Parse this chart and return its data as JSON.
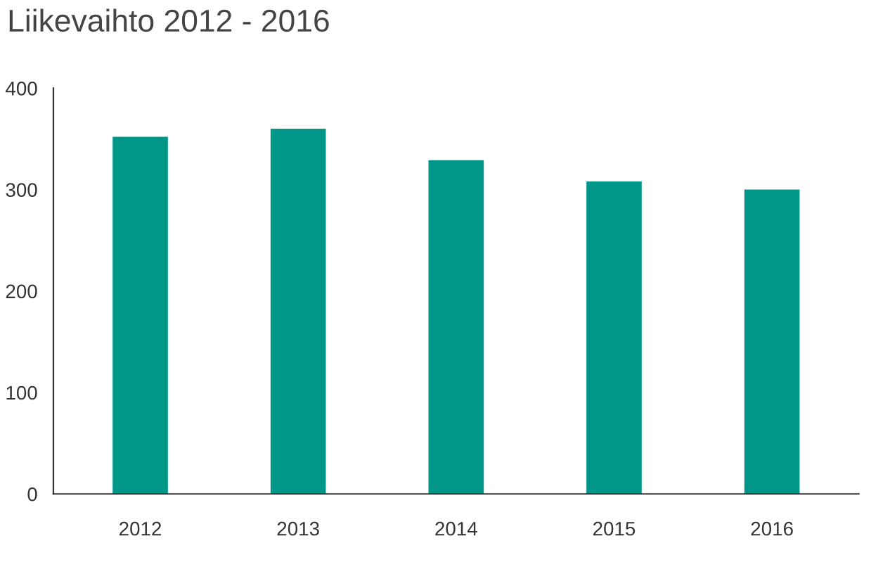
{
  "chart_data": {
    "type": "bar",
    "title": "Liikevaihto 2012 - 2016",
    "categories": [
      "2012",
      "2013",
      "2014",
      "2015",
      "2016"
    ],
    "values": [
      352,
      360,
      329,
      308,
      300
    ],
    "color": "#009688",
    "ylim": [
      0,
      400
    ],
    "yticks": [
      0,
      100,
      200,
      300,
      400
    ],
    "grid": false
  }
}
